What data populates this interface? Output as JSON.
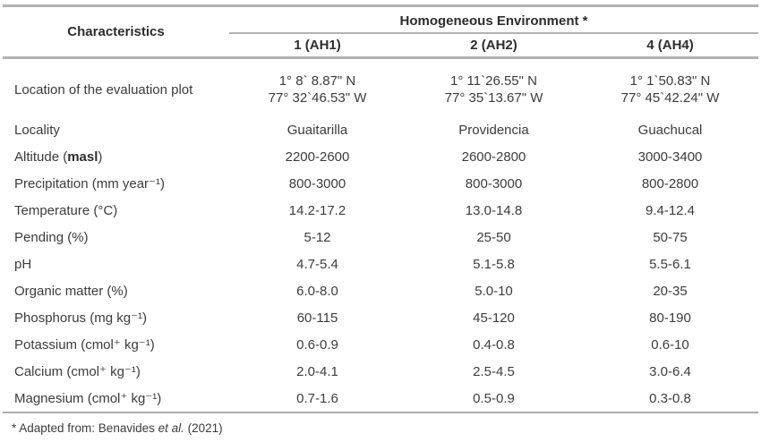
{
  "table": {
    "header": {
      "characteristics": "Characteristics",
      "group_title": "Homogeneous Environment *",
      "columns": [
        "1 (AH1)",
        "2 (AH2)",
        "4 (AH4)"
      ],
      "column_ids": [
        "ah1",
        "ah2",
        "ah4"
      ]
    },
    "rows": [
      {
        "name": "location",
        "label": "Location of the evaluation plot",
        "values": [
          "1° 8` 8.87\" N\n77° 32`46.53\" W",
          "1° 11`26.55\" N\n77° 35`13.67\" W",
          "1° 1`50.83\" N\n77° 45`42.24\" W"
        ]
      },
      {
        "name": "locality",
        "label": "Locality",
        "values": [
          "Guaitarilla",
          "Providencia",
          "Guachucal"
        ]
      },
      {
        "name": "altitude",
        "label_prefix": "Altitude (",
        "label_bold": "masl",
        "label_suffix": ")",
        "values": [
          "2200-2600",
          "2600-2800",
          "3000-3400"
        ]
      },
      {
        "name": "precipitation",
        "label": "Precipitation (mm year⁻¹)",
        "values": [
          "800-3000",
          "800-3000",
          "800-2800"
        ]
      },
      {
        "name": "temperature",
        "label": "Temperature (°C)",
        "values": [
          "14.2-17.2",
          "13.0-14.8",
          "9.4-12.4"
        ]
      },
      {
        "name": "pending",
        "label": "Pending (%)",
        "values": [
          "5-12",
          "25-50",
          "50-75"
        ]
      },
      {
        "name": "ph",
        "label": "pH",
        "values": [
          "4.7-5.4",
          "5.1-5.8",
          "5.5-6.1"
        ]
      },
      {
        "name": "organic-matter",
        "label": "Organic matter (%)",
        "values": [
          "6.0-8.0",
          "5.0-10",
          "20-35"
        ]
      },
      {
        "name": "phosphorus",
        "label": "Phosphorus (mg kg⁻¹)",
        "values": [
          "60-115",
          "45-120",
          "80-190"
        ]
      },
      {
        "name": "potassium",
        "label": "Potassium (cmol⁺ kg⁻¹)",
        "values": [
          "0.6-0.9",
          "0.4-0.8",
          "0.6-10"
        ]
      },
      {
        "name": "calcium",
        "label": "Calcium (cmol⁺ kg⁻¹)",
        "values": [
          "2.0-4.1",
          "2.5-4.5",
          "3.0-6.4"
        ]
      },
      {
        "name": "magnesium",
        "label": "Magnesium (cmol⁺ kg⁻¹)",
        "values": [
          "0.7-1.6",
          "0.5-0.9",
          "0.3-0.8"
        ]
      }
    ]
  },
  "footnote": {
    "prefix": "* Adapted from: Benavides ",
    "italic": "et al.",
    "suffix": " (2021)"
  }
}
